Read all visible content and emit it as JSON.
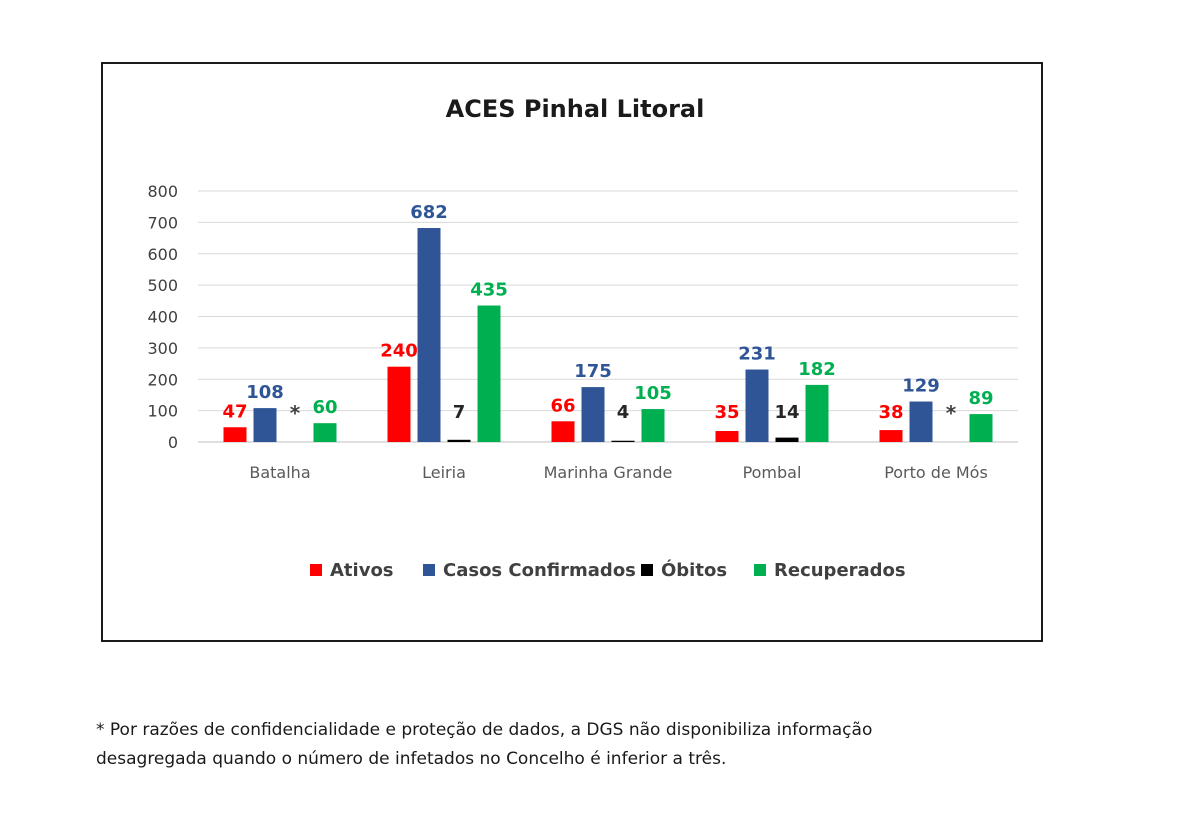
{
  "chart_data": {
    "type": "bar",
    "title": "ACES Pinhal Litoral",
    "xlabel": "",
    "ylabel": "",
    "ylim": [
      0,
      800
    ],
    "yticks": [
      0,
      100,
      200,
      300,
      400,
      500,
      600,
      700,
      800
    ],
    "categories": [
      "Batalha",
      "Leiria",
      "Marinha Grande",
      "Pombal",
      "Porto de Mós"
    ],
    "series": [
      {
        "name": "Ativos",
        "color": "#ff0000",
        "values": [
          47,
          240,
          66,
          35,
          38
        ]
      },
      {
        "name": "Casos Confirmados",
        "color": "#2f5597",
        "values": [
          108,
          682,
          175,
          231,
          129
        ]
      },
      {
        "name": "Óbitos",
        "color": "#000000",
        "values": [
          null,
          7,
          4,
          14,
          null
        ]
      },
      {
        "name": "Recuperados",
        "color": "#00b050",
        "values": [
          60,
          435,
          105,
          182,
          89
        ]
      }
    ],
    "suppressed_marker": "*",
    "grid": true,
    "legend_position": "bottom"
  },
  "footnote": {
    "line1": "* Por razões de confidencialidade e proteção de dados, a DGS não disponibiliza informação",
    "line2": "desagregada quando o número de infetados no Concelho é inferior a três."
  }
}
